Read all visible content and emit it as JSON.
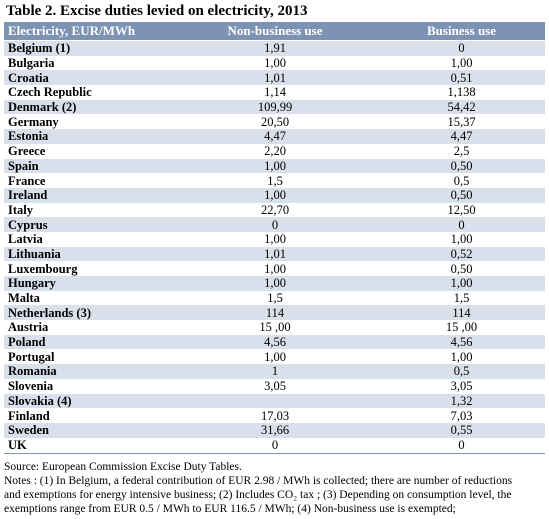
{
  "title": "Table 2. Excise duties levied on electricity, 2013",
  "headers": [
    "Electricity, EUR/MWh",
    "Non-business use",
    "Business use"
  ],
  "rows": [
    [
      "Belgium (1)",
      "1,91",
      "0"
    ],
    [
      "Bulgaria",
      "1,00",
      "1,00"
    ],
    [
      "Croatia",
      "1,01",
      "0,51"
    ],
    [
      "Czech Republic",
      "1,14",
      "1,138"
    ],
    [
      "Denmark (2)",
      "109,99",
      "54,42"
    ],
    [
      "Germany",
      "20,50",
      "15,37"
    ],
    [
      "Estonia",
      "4,47",
      "4,47"
    ],
    [
      "Greece",
      "2,20",
      "2,5"
    ],
    [
      "Spain",
      "1,00",
      "0,50"
    ],
    [
      "France",
      "1,5",
      "0,5"
    ],
    [
      "Ireland",
      "1,00",
      "0,50"
    ],
    [
      "Italy",
      "22,70",
      "12,50"
    ],
    [
      "Cyprus",
      "0",
      "0"
    ],
    [
      "Latvia",
      "1,00",
      "1,00"
    ],
    [
      "Lithuania",
      "1,01",
      "0,52"
    ],
    [
      "Luxembourg",
      "1,00",
      "0,50"
    ],
    [
      "Hungary",
      "1,00",
      "1,00"
    ],
    [
      "Malta",
      "1,5",
      "1,5"
    ],
    [
      "Netherlands (3)",
      "114",
      "114"
    ],
    [
      "Austria",
      "15 ,00",
      "15 ,00"
    ],
    [
      "Poland",
      "4,56",
      "4,56"
    ],
    [
      "Portugal",
      "1,00",
      "1,00"
    ],
    [
      "Romania",
      "1",
      "0,5"
    ],
    [
      "Slovenia",
      "3,05",
      "3,05"
    ],
    [
      "Slovakia (4)",
      "",
      "1,32"
    ],
    [
      "Finland",
      "17,03",
      "7,03"
    ],
    [
      "Sweden",
      "31,66",
      "0,55"
    ],
    [
      "UK",
      "0",
      "0"
    ]
  ],
  "source": "Source: European Commission Excise Duty Tables.",
  "notes_line1": "Notes : (1) In Belgium, a federal contribution of EUR 2.98 / MWh is collected; there are number of reductions",
  "notes_line2": "and exemptions for energy intensive business; (2) Includes CO₂ tax ; (3) Depending on consumption level, the",
  "notes_line3": "exemptions range from EUR 0.5 / MWh to EUR 116.5 / MWh; (4) Non-business use is exempted;"
}
